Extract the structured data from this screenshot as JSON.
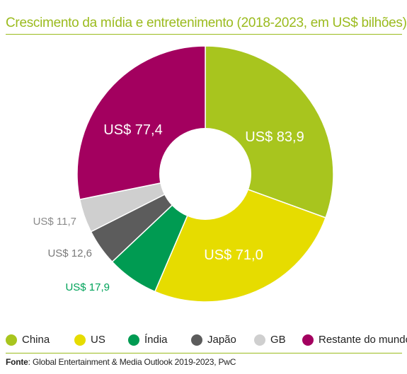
{
  "chart_data": {
    "type": "pie",
    "title": "Crescimento da mídia e entretenimento (2018-2023, em US$ bilhões)",
    "categories": [
      "China",
      "US",
      "Índia",
      "Japão",
      "GB",
      "Restante do mundo"
    ],
    "values": [
      83.9,
      71.0,
      17.9,
      12.6,
      11.7,
      77.4
    ],
    "data_labels": [
      "US$ 83,9",
      "US$ 71,0",
      "US$ 17,9",
      "US$ 12,6",
      "US$ 11,7",
      "US$ 77,4"
    ],
    "colors": [
      "#a8c51e",
      "#e6dc00",
      "#009b52",
      "#5c5c5c",
      "#cfcfcf",
      "#a3005f"
    ],
    "label_colors": [
      "#ffffff",
      "#ffffff",
      "#00a35a",
      "#7a7a7a",
      "#8a8a8a",
      "#ffffff"
    ],
    "donut": true,
    "legend_position": "bottom"
  },
  "source": {
    "prefix": "Fonte",
    "text": ": Global Entertainment & Media Outlook 2019-2023, PwC"
  }
}
